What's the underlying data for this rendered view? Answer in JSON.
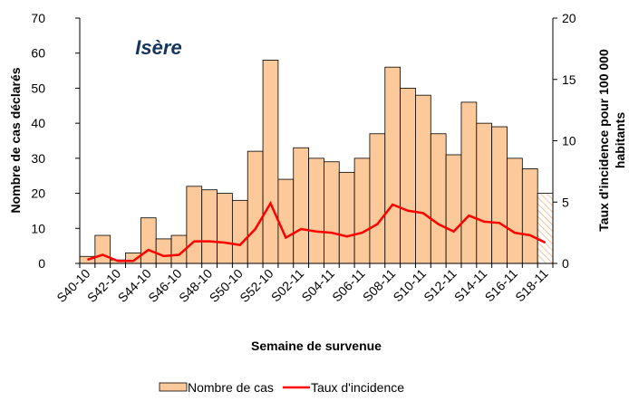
{
  "chart_data": {
    "type": "bar",
    "annotation": "Isère",
    "xlabel": "Semaine de survenue",
    "ylabel": "Nombre de cas déclarés",
    "y2label": [
      "Taux d'incidence pour 100 000",
      "habitants"
    ],
    "categories": [
      "S40-10",
      null,
      "S42-10",
      null,
      "S44-10",
      null,
      "S46-10",
      null,
      "S48-10",
      null,
      "S50-10",
      null,
      "S52-10",
      null,
      "S02-11",
      null,
      "S04-11",
      null,
      "S06-11",
      null,
      "S08-11",
      null,
      "S10-11",
      null,
      "S12-11",
      null,
      "S14-11",
      null,
      "S16-11",
      null,
      "S18-11"
    ],
    "series": [
      {
        "name": "Nombre de cas",
        "type": "bar",
        "color": "#fcc99b",
        "values": [
          2,
          8,
          1,
          3,
          13,
          7,
          8,
          22,
          21,
          20,
          18,
          32,
          58,
          24,
          33,
          30,
          29,
          26,
          30,
          37,
          56,
          50,
          48,
          37,
          31,
          46,
          40,
          39,
          30,
          27,
          20
        ]
      },
      {
        "name": "Taux d'incidence",
        "type": "line",
        "axis": "y2",
        "color": "#ff0000",
        "values": [
          0.3,
          0.7,
          0.2,
          0.2,
          1.1,
          0.6,
          0.7,
          1.8,
          1.8,
          1.7,
          1.5,
          2.8,
          4.9,
          2.1,
          2.8,
          2.6,
          2.5,
          2.2,
          2.5,
          3.2,
          4.8,
          4.3,
          4.1,
          3.2,
          2.6,
          3.9,
          3.4,
          3.3,
          2.5,
          2.3,
          1.7
        ]
      }
    ],
    "ylim": [
      0,
      70
    ],
    "yticks": [
      0,
      10,
      20,
      30,
      40,
      50,
      60,
      70
    ],
    "y2lim": [
      0,
      20
    ],
    "y2ticks": [
      0,
      5,
      10,
      15,
      20
    ]
  }
}
